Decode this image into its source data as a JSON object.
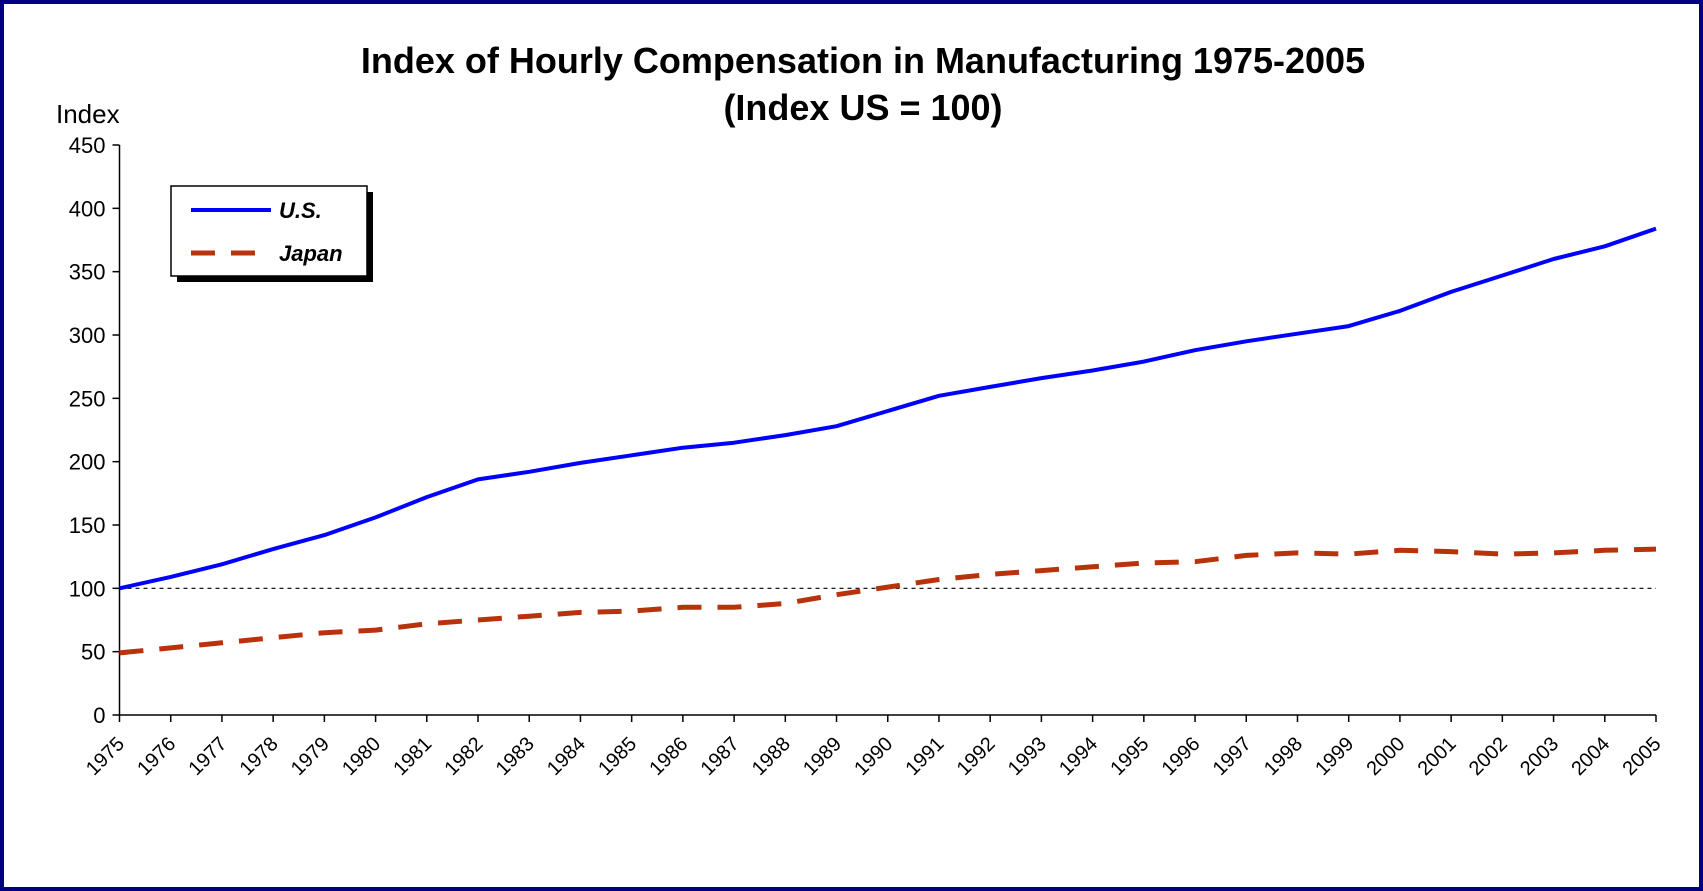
{
  "chart_data": {
    "type": "line",
    "title": "Index of Hourly Compensation in Manufacturing 1975-2005",
    "subtitle": "(Index US = 100)",
    "y_label": "Index",
    "categories": [
      "1975",
      "1976",
      "1977",
      "1978",
      "1979",
      "1980",
      "1981",
      "1982",
      "1983",
      "1984",
      "1985",
      "1986",
      "1987",
      "1988",
      "1989",
      "1990",
      "1991",
      "1992",
      "1993",
      "1994",
      "1995",
      "1996",
      "1997",
      "1998",
      "1999",
      "2000",
      "2001",
      "2002",
      "2003",
      "2004",
      "2005"
    ],
    "series": [
      {
        "name": "U.S.",
        "color": "#0000ff",
        "dashed": false,
        "values": [
          100,
          109,
          119,
          131,
          142,
          156,
          172,
          186,
          192,
          199,
          205,
          211,
          215,
          221,
          228,
          240,
          252,
          259,
          266,
          272,
          279,
          288,
          295,
          301,
          307,
          319,
          334,
          347,
          360,
          370,
          384
        ]
      },
      {
        "name": "Japan",
        "color": "#b8330c",
        "dashed": true,
        "values": [
          49,
          53,
          57,
          61,
          65,
          67,
          72,
          75,
          78,
          81,
          82,
          85,
          85,
          88,
          95,
          101,
          107,
          111,
          114,
          117,
          120,
          121,
          126,
          128,
          127,
          130,
          129,
          127,
          128,
          130,
          131
        ]
      }
    ],
    "reference_line": 100,
    "ylim": [
      0,
      450
    ],
    "yticks": [
      0,
      50,
      100,
      150,
      200,
      250,
      300,
      350,
      400,
      450
    ],
    "grid": false,
    "legend": "top-left"
  }
}
